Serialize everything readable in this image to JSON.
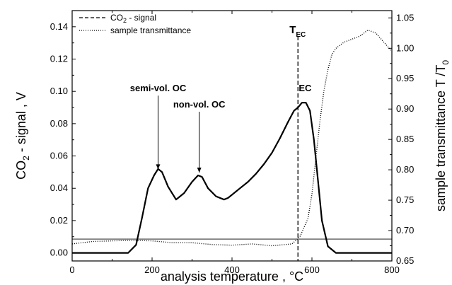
{
  "chart_data": {
    "type": "line",
    "x_axis": {
      "label": "analysis temperature ,  °C",
      "range": [
        0,
        800
      ],
      "ticks": [
        0,
        200,
        400,
        600,
        800
      ],
      "tick_labels": [
        "0",
        "200",
        "400",
        "600",
        "800"
      ]
    },
    "y_axis_left": {
      "label_main": "CO",
      "label_sub": "2",
      "label_rest": " - signal ,  V",
      "range": [
        -0.005,
        0.15
      ],
      "ticks": [
        0.0,
        0.02,
        0.04,
        0.06,
        0.08,
        0.1,
        0.12,
        0.14
      ],
      "tick_labels": [
        "0.00",
        "0.02",
        "0.04",
        "0.06",
        "0.08",
        "0.10",
        "0.12",
        "0.14"
      ]
    },
    "y_axis_right": {
      "label_main": "sample transmittance  T /T",
      "label_sub": "0",
      "range": [
        0.65,
        1.062
      ],
      "ticks": [
        0.65,
        0.7,
        0.75,
        0.8,
        0.85,
        0.9,
        0.95,
        1.0,
        1.05
      ],
      "tick_labels": [
        "0.65",
        "0.70",
        "0.75",
        "0.80",
        "0.85",
        "0.90",
        "0.95",
        "1.00",
        "1.05"
      ]
    },
    "legend": {
      "placement": "top-left",
      "entries": [
        {
          "main": "CO",
          "sub": "2",
          "rest": " - signal",
          "style": "dashed"
        },
        {
          "main": "sample transmittance",
          "sub": "",
          "rest": "",
          "style": "dotted"
        }
      ]
    },
    "series": [
      {
        "axis": "left",
        "style": "solid",
        "x": [
          0,
          50,
          100,
          140,
          160,
          175,
          190,
          205,
          215,
          225,
          240,
          260,
          280,
          300,
          315,
          325,
          340,
          360,
          380,
          390,
          400,
          420,
          440,
          460,
          480,
          500,
          520,
          540,
          555,
          565,
          575,
          585,
          595,
          605,
          615,
          625,
          640,
          660,
          700,
          750,
          800
        ],
        "y": [
          0.0,
          0.0,
          0.0,
          0.0,
          0.005,
          0.022,
          0.04,
          0.048,
          0.052,
          0.05,
          0.041,
          0.033,
          0.037,
          0.044,
          0.048,
          0.047,
          0.04,
          0.035,
          0.033,
          0.034,
          0.036,
          0.04,
          0.044,
          0.049,
          0.055,
          0.062,
          0.071,
          0.081,
          0.088,
          0.09,
          0.093,
          0.093,
          0.088,
          0.07,
          0.045,
          0.02,
          0.004,
          0.0,
          0.0,
          0.0,
          0.0
        ]
      },
      {
        "axis": "right",
        "style": "dotted",
        "x": [
          0,
          50,
          100,
          150,
          200,
          250,
          300,
          350,
          400,
          450,
          500,
          550,
          570,
          590,
          600,
          610,
          620,
          630,
          640,
          650,
          660,
          680,
          700,
          720,
          740,
          760,
          780,
          800
        ],
        "y": [
          0.678,
          0.682,
          0.683,
          0.684,
          0.683,
          0.68,
          0.68,
          0.677,
          0.676,
          0.678,
          0.675,
          0.678,
          0.69,
          0.72,
          0.76,
          0.82,
          0.88,
          0.93,
          0.965,
          0.99,
          1.0,
          1.01,
          1.015,
          1.02,
          1.03,
          1.025,
          1.01,
          0.995
        ]
      },
      {
        "axis": "right",
        "style": "thin-solid",
        "x": [
          0,
          800
        ],
        "y": [
          0.686,
          0.686
        ]
      }
    ],
    "vlines": [
      {
        "x": 565,
        "style": "dashed",
        "label_main": "T",
        "label_sub": "EC"
      }
    ],
    "annotations": [
      {
        "text": "semi-vol. OC",
        "arrow_to_x": 215,
        "arrow_to_y": 0.05,
        "label_x": 215,
        "label_y": 0.1
      },
      {
        "text": "non-vol. OC",
        "arrow_to_x": 318,
        "arrow_to_y": 0.048,
        "label_x": 318,
        "label_y": 0.09
      },
      {
        "text": "EC",
        "arrow_to_x": null,
        "arrow_to_y": null,
        "label_x": 583,
        "label_y": 0.1
      }
    ],
    "grid": false
  }
}
